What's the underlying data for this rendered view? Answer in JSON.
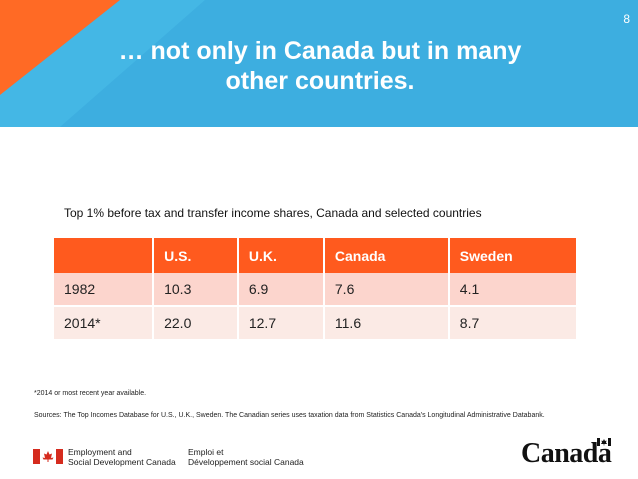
{
  "slide": {
    "page_number": "8",
    "title_line1": "… not only in Canada but in many",
    "title_line2": "other countries.",
    "accent_color": "#ff5a1e",
    "header_color": "#3daee0"
  },
  "table": {
    "caption": "Top 1% before tax and transfer income shares, Canada and selected countries",
    "headers": [
      "",
      "U.S.",
      "U.K.",
      "Canada",
      "Sweden"
    ],
    "rows": [
      [
        "1982",
        "10.3",
        "6.9",
        "7.6",
        "4.1"
      ],
      [
        "2014*",
        "22.0",
        "12.7",
        "11.6",
        "8.7"
      ]
    ]
  },
  "notes": {
    "footnote": "*2014 or most recent year available.",
    "sources": "Sources: The Top Incomes Database for U.S., U.K., Sweden. The Canadian series uses taxation data from Statistics Canada's Longitudinal Administrative Databank."
  },
  "footer": {
    "dept_en_line1": "Employment and",
    "dept_en_line2": "Social Development Canada",
    "dept_fr_line1": "Emploi et",
    "dept_fr_line2": "Développement social Canada",
    "wordmark": "Canada"
  }
}
